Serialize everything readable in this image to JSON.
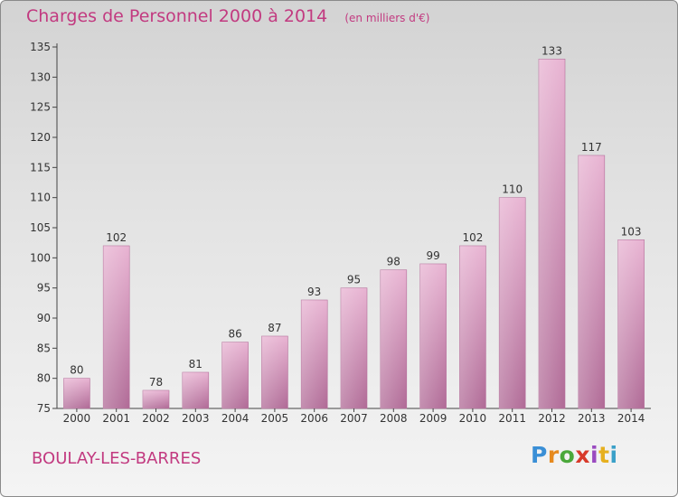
{
  "title": "Charges de Personnel 2000 à 2014",
  "unit": "(en milliers d'€)",
  "location": "BOULAY-LES-BARRES",
  "logo": {
    "letters": [
      "P",
      "r",
      "o",
      "x",
      "i",
      "t",
      "i"
    ],
    "colors": [
      "#3a8fd6",
      "#e68a1f",
      "#4aa83a",
      "#d83a2a",
      "#9a4ac0",
      "#e6b01f",
      "#3aa0c8"
    ]
  },
  "colors": {
    "bar_top": "#e8b3d2",
    "bar_bottom": "#b06a96",
    "text": "#c23a80"
  },
  "chart_data": {
    "type": "bar",
    "categories": [
      "2000",
      "2001",
      "2002",
      "2003",
      "2004",
      "2005",
      "2006",
      "2007",
      "2008",
      "2009",
      "2010",
      "2011",
      "2012",
      "2013",
      "2014"
    ],
    "values": [
      80,
      102,
      78,
      81,
      86,
      87,
      93,
      95,
      98,
      99,
      102,
      110,
      133,
      117,
      103
    ],
    "ylim": [
      75,
      135
    ],
    "yticks": [
      75,
      80,
      85,
      90,
      95,
      100,
      105,
      110,
      115,
      120,
      125,
      130,
      135
    ],
    "title": "Charges de Personnel 2000 à 2014",
    "xlabel": "",
    "ylabel": "",
    "grid": false
  }
}
